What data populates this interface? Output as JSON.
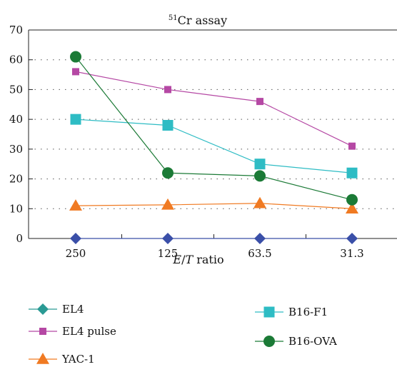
{
  "chart_data": {
    "type": "line",
    "title_sup": "51",
    "title": "Cr assay",
    "xlabel_italic_e": "E",
    "xlabel_slash": "/",
    "xlabel_italic_t": "T",
    "xlabel_rest": " ratio",
    "ylabel": "",
    "categories": [
      "250",
      "125",
      "63.5",
      "31.3"
    ],
    "ylim": [
      0,
      70
    ],
    "yticks": [
      0,
      10,
      20,
      30,
      40,
      50,
      60,
      70
    ],
    "grid": "dotted horizontal",
    "legend_position": "bottom",
    "series": [
      {
        "name": "EL4",
        "color": "#3a4fa8",
        "legend_color": "#2a9a94",
        "marker": "diamond",
        "values": [
          0,
          0,
          0,
          0
        ]
      },
      {
        "name": "EL4 pulse",
        "color": "#b548a4",
        "marker": "square",
        "values": [
          56,
          50,
          46,
          31
        ]
      },
      {
        "name": "YAC-1",
        "color": "#f07a22",
        "marker": "triangle",
        "values": [
          11,
          11.3,
          11.8,
          10
        ]
      },
      {
        "name": "B16-F1",
        "color": "#2ebcc4",
        "marker": "square-large",
        "values": [
          40,
          38,
          25,
          22
        ]
      },
      {
        "name": "B16-OVA",
        "color": "#1b7a36",
        "marker": "circle",
        "values": [
          61,
          22,
          21,
          13
        ]
      }
    ]
  }
}
